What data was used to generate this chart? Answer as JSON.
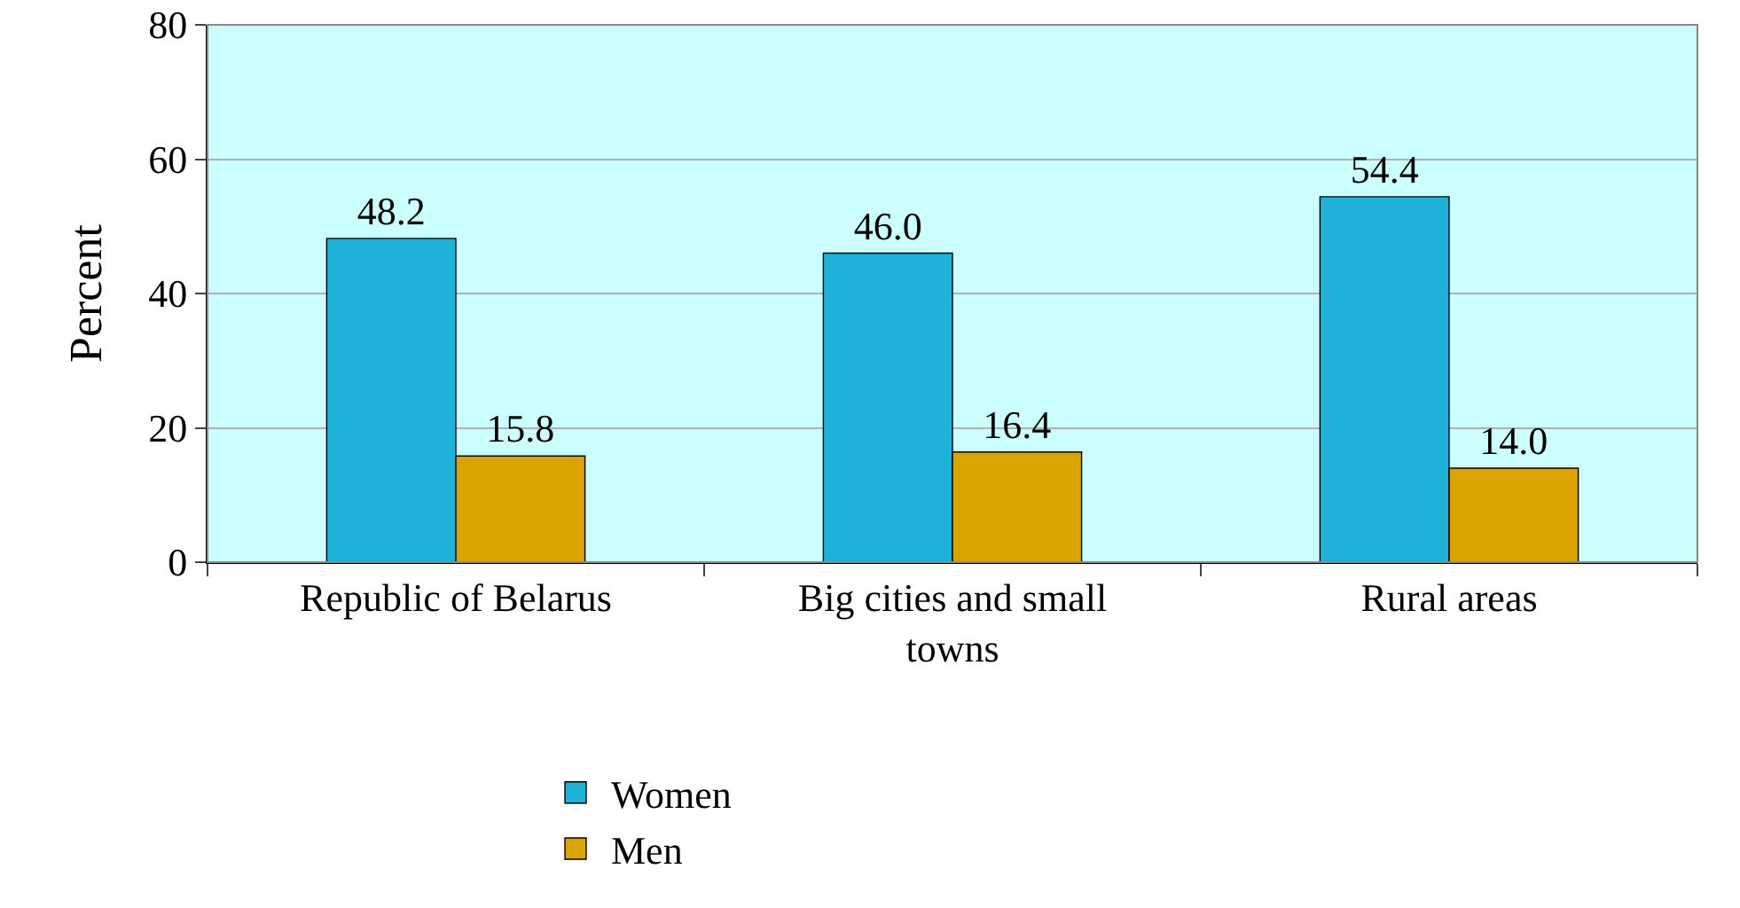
{
  "chart_data": {
    "type": "bar",
    "ylabel": "Percent",
    "categories": [
      "Republic of Belarus",
      "Big cities and small towns",
      "Rural areas"
    ],
    "series": [
      {
        "name": "Women",
        "color": "#1fb2d8",
        "values": [
          48.2,
          46.0,
          54.4
        ],
        "value_labels": [
          "48.2",
          "46.0",
          "54.4"
        ]
      },
      {
        "name": "Men",
        "color": "#d9a400",
        "values": [
          15.8,
          16.4,
          14.0
        ],
        "value_labels": [
          "15.8",
          "16.4",
          "14.0"
        ]
      }
    ],
    "ylim": [
      0,
      80
    ],
    "yticks": [
      0,
      20,
      40,
      60,
      80
    ],
    "grid": "y",
    "legend": "bottom"
  }
}
